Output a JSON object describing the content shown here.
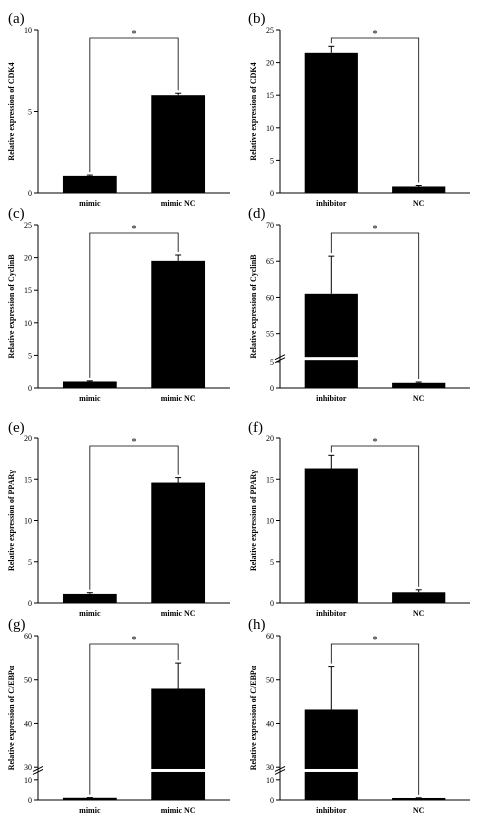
{
  "chart_data": [
    {
      "panel_label": "(a)",
      "type": "bar",
      "ylabel": "Relative expression of CDK4",
      "categories": [
        "mimic",
        "mimic NC"
      ],
      "values": [
        1.05,
        6.0
      ],
      "errors": [
        0.05,
        0.12
      ],
      "ylim": [
        0,
        10
      ],
      "yticks": [
        "0",
        "5",
        "10"
      ],
      "significance": "*"
    },
    {
      "panel_label": "(b)",
      "type": "bar",
      "ylabel": "Relative expression of CDK4",
      "categories": [
        "inhibitor",
        "NC"
      ],
      "values": [
        21.5,
        1.0
      ],
      "errors": [
        1.0,
        0.15
      ],
      "ylim": [
        0,
        25
      ],
      "yticks": [
        "0",
        "5",
        "10",
        "15",
        "20",
        "25"
      ],
      "significance": "*"
    },
    {
      "panel_label": "(c)",
      "type": "bar",
      "ylabel": "Relative expression of CyclinB",
      "categories": [
        "mimic",
        "mimic NC"
      ],
      "values": [
        1.0,
        19.5
      ],
      "errors": [
        0.1,
        0.9
      ],
      "ylim": [
        0,
        25
      ],
      "yticks": [
        "0",
        "5",
        "10",
        "15",
        "20",
        "25"
      ],
      "significance": "*"
    },
    {
      "panel_label": "(d)",
      "type": "bar",
      "ylabel": "Relative expression of CyclinB",
      "categories": [
        "inhibitor",
        "NC"
      ],
      "values": [
        60.5,
        1.0
      ],
      "errors": [
        5.2,
        0.15
      ],
      "axis_break": {
        "lower": [
          0,
          5
        ],
        "upper": [
          52,
          70
        ]
      },
      "yticks": [
        "0",
        "5",
        "55",
        "60",
        "65",
        "70"
      ],
      "significance": "*"
    },
    {
      "panel_label": "(e)",
      "type": "bar",
      "ylabel": "Relative expression of PPARγ",
      "categories": [
        "mimic",
        "mimic NC"
      ],
      "values": [
        1.1,
        14.6
      ],
      "errors": [
        0.15,
        0.6
      ],
      "ylim": [
        0,
        20
      ],
      "yticks": [
        "0",
        "5",
        "10",
        "15",
        "20"
      ],
      "significance": "*"
    },
    {
      "panel_label": "(f)",
      "type": "bar",
      "ylabel": "Relative expression of PPARγ",
      "categories": [
        "inhibitor",
        "NC"
      ],
      "values": [
        16.3,
        1.3
      ],
      "errors": [
        1.6,
        0.3
      ],
      "ylim": [
        0,
        20
      ],
      "yticks": [
        "0",
        "5",
        "10",
        "15",
        "20"
      ],
      "significance": "*"
    },
    {
      "panel_label": "(g)",
      "type": "bar",
      "ylabel": "Relative expression of C/EBPα",
      "categories": [
        "mimic",
        "mimic NC"
      ],
      "values": [
        1.1,
        48.0
      ],
      "errors": [
        0.1,
        5.8
      ],
      "axis_break": {
        "lower": [
          0,
          13
        ],
        "upper": [
          30,
          60
        ]
      },
      "yticks": [
        "0",
        "10",
        "30",
        "40",
        "50",
        "60"
      ],
      "significance": "*"
    },
    {
      "panel_label": "(h)",
      "type": "bar",
      "ylabel": "Relative expression of C/EBPα",
      "categories": [
        "inhibitor",
        "NC"
      ],
      "values": [
        43.2,
        1.0
      ],
      "errors": [
        9.8,
        0.1
      ],
      "axis_break": {
        "lower": [
          0,
          13
        ],
        "upper": [
          30,
          60
        ]
      },
      "yticks": [
        "0",
        "10",
        "30",
        "40",
        "50",
        "60"
      ],
      "significance": "*"
    }
  ]
}
